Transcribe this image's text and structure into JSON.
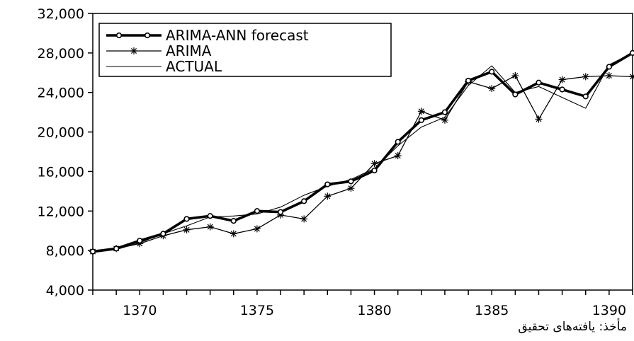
{
  "chart_data": {
    "type": "line",
    "x": [
      1368,
      1369,
      1370,
      1371,
      1372,
      1373,
      1374,
      1375,
      1376,
      1377,
      1378,
      1379,
      1380,
      1381,
      1382,
      1383,
      1384,
      1385,
      1386,
      1387,
      1388,
      1389,
      1390,
      1391
    ],
    "xticks": [
      "1370",
      "1375",
      "1380",
      "1385",
      "1390"
    ],
    "yticks": [
      "4,000",
      "8,000",
      "12,000",
      "16,000",
      "20,000",
      "24,000",
      "28,000",
      "32,000"
    ],
    "xlim": [
      1368,
      1391
    ],
    "ylim": [
      4000,
      32000
    ],
    "grid": false,
    "legend_position": "top-left",
    "series": [
      {
        "name": "ARIMA-ANN forecast",
        "color": "#000000",
        "style": "thick-circle",
        "values": [
          7900,
          8200,
          9000,
          9700,
          11200,
          11500,
          11000,
          12000,
          11900,
          13000,
          14700,
          15000,
          16100,
          19000,
          21200,
          22000,
          25200,
          26100,
          23800,
          25000,
          24300,
          23600,
          26600,
          28000
        ]
      },
      {
        "name": "ARIMA",
        "color": "#000000",
        "style": "star",
        "values": [
          7900,
          8200,
          8700,
          9500,
          10100,
          10400,
          9700,
          10200,
          11600,
          11200,
          13500,
          14300,
          16800,
          17600,
          22100,
          21200,
          25100,
          24400,
          25700,
          21300,
          25300,
          25600,
          25700,
          25600
        ]
      },
      {
        "name": "ACTUAL",
        "color": "#000000",
        "style": "thin",
        "values": [
          7800,
          8100,
          8800,
          9700,
          10500,
          11400,
          11500,
          11700,
          12400,
          13600,
          14500,
          15200,
          16300,
          18600,
          20500,
          21500,
          24700,
          26700,
          24000,
          24600,
          23500,
          22400,
          26800,
          28000
        ]
      }
    ]
  },
  "source_note": "مأخذ: یافته‌های تحقیق"
}
